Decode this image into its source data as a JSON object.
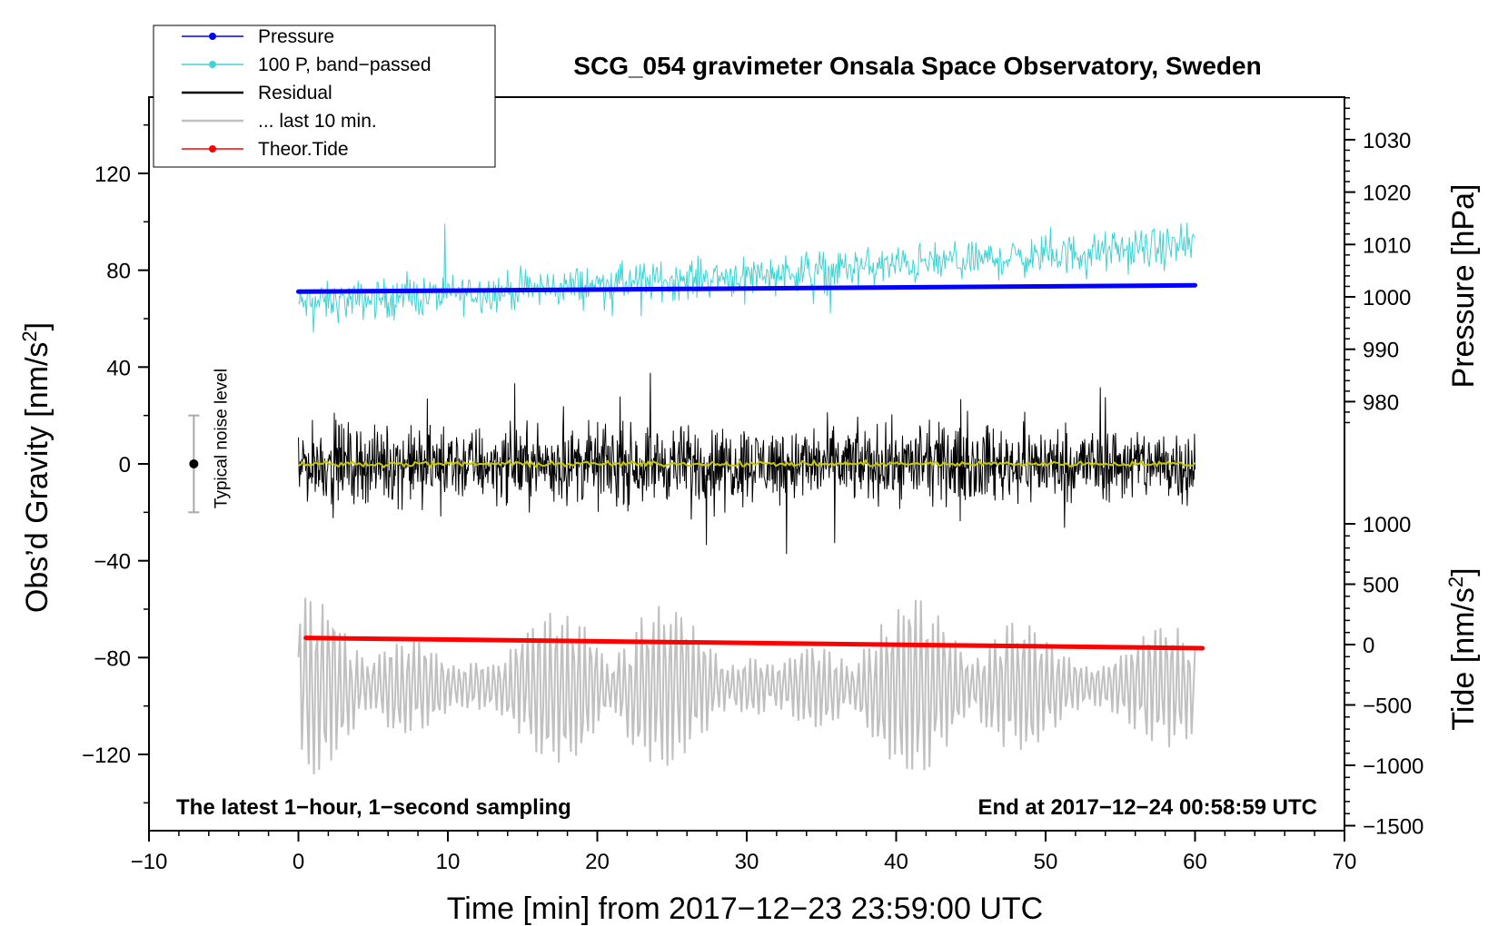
{
  "chart_data": {
    "type": "line",
    "title": "SCG_054 gravimeter Onsala Space Observatory, Sweden",
    "xlabel": "Time [min] from 2017−12−23 23:59:00 UTC",
    "ylabel_left": "Obs’d Gravity [nm/s",
    "ylabel_left_sup": "2",
    "ylabel_left_close": "]",
    "ylabel_right_top": "Pressure [hPa]",
    "ylabel_right_bottom": "Tide [nm/s",
    "ylabel_right_bottom_sup": "2",
    "ylabel_right_bottom_close": "]",
    "xlim": [
      -10,
      70
    ],
    "ylim_left": [
      -150,
      150
    ],
    "x_ticks": [
      -10,
      0,
      10,
      20,
      30,
      40,
      50,
      60,
      70
    ],
    "x_tick_labels": [
      "−10",
      "0",
      "10",
      "20",
      "30",
      "40",
      "50",
      "60",
      "70"
    ],
    "y_left_ticks": [
      120,
      80,
      40,
      0,
      -40,
      -80,
      -120
    ],
    "y_left_tick_labels": [
      "120",
      "80",
      "40",
      "0",
      "−40",
      "−80",
      "−120"
    ],
    "pressure_axis": {
      "ticks": [
        980,
        990,
        1000,
        1010,
        1020,
        1030
      ],
      "tick_labels": [
        "980",
        "990",
        "1000",
        "1010",
        "1020",
        "1030"
      ]
    },
    "tide_axis": {
      "ticks": [
        1000,
        500,
        0,
        -500,
        -1000,
        -1500
      ],
      "tick_labels": [
        "1000",
        "500",
        "0",
        "−500",
        "−1000",
        "−1500"
      ]
    },
    "legend": [
      {
        "label": "Pressure",
        "color": "#0000ff",
        "marker": true
      },
      {
        "label": "100 P, band−passed",
        "color": "#3fd4d4",
        "marker": true
      },
      {
        "label": "Residual",
        "color": "#000000",
        "marker": false
      },
      {
        "label": "... last 10 min.",
        "color": "#c0c0c0",
        "marker": false
      },
      {
        "label": "Theor.Tide",
        "color": "#ff0000",
        "marker": true
      }
    ],
    "series": [
      {
        "name": "Pressure",
        "color": "#0000ff",
        "axis": "pressure",
        "x_range": [
          0,
          60
        ],
        "start": 1001,
        "end": 1002.2
      },
      {
        "name": "100 P, band−passed",
        "color": "#3fd4d4",
        "axis": "left",
        "x_range": [
          0,
          60
        ],
        "center_start": 66,
        "center_end": 90,
        "amplitude": 12
      },
      {
        "name": "Residual",
        "color": "#000000",
        "axis": "left",
        "x_range": [
          0,
          60
        ],
        "center": 0,
        "amplitude": 25
      },
      {
        "name": "Smoothed residual",
        "color": "#c8c800",
        "axis": "left",
        "x_range": [
          0,
          60
        ],
        "center": 0,
        "amplitude": 1.5
      },
      {
        "name": "... last 10 min.",
        "color": "#c0c0c0",
        "axis": "left",
        "x_range": [
          0,
          60
        ],
        "center": -92,
        "amplitude": 18
      },
      {
        "name": "Theor.Tide",
        "color": "#ff0000",
        "axis": "tide",
        "x_range": [
          0.5,
          60.5
        ],
        "start": 55,
        "end": -30
      }
    ],
    "noise_indicator": {
      "label": "Typical noise level",
      "x": -7,
      "center": 0,
      "half_range": 20
    },
    "footer_left": "The latest 1−hour, 1−second sampling",
    "footer_right": "End at 2017−12−24 00:58:59 UTC"
  }
}
